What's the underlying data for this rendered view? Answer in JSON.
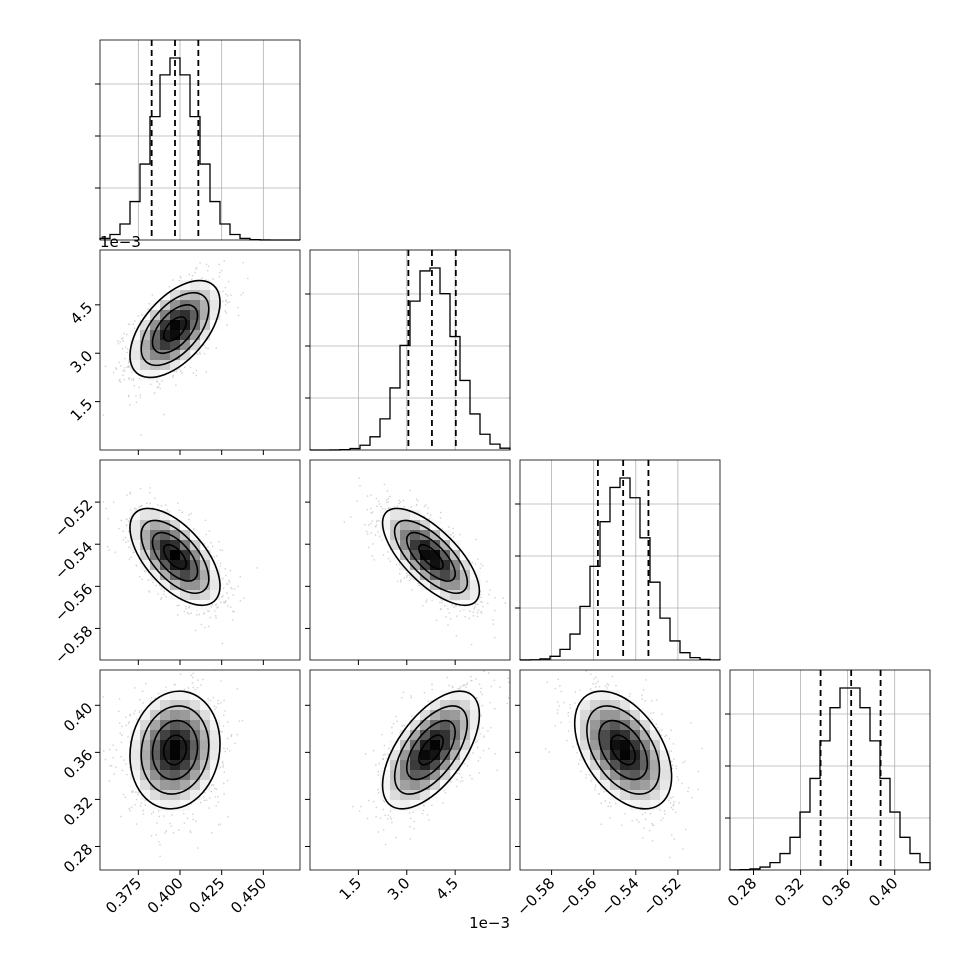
{
  "chart_data": {
    "type": "corner",
    "offset_text": "1e−3",
    "parameters": [
      {
        "range": [
          0.352,
          0.472
        ],
        "ticks": [
          0.375,
          0.4,
          0.425,
          0.45
        ],
        "tick_labels": [
          "0.375",
          "0.400",
          "0.425",
          "0.450"
        ],
        "mean": 0.397,
        "sd": 0.0135,
        "quantiles": [
          0.383,
          0.397,
          0.411
        ]
      },
      {
        "range": [
          0.0,
          0.0062
        ],
        "ticks": [
          0.0015,
          0.003,
          0.0045
        ],
        "tick_labels": [
          "1.5",
          "3.0",
          "4.5"
        ],
        "mean": 0.00375,
        "sd": 0.00075,
        "quantiles": [
          0.00305,
          0.00378,
          0.00452
        ],
        "scale_offset": "1e−3"
      },
      {
        "range": [
          -0.595,
          -0.5
        ],
        "ticks": [
          -0.58,
          -0.56,
          -0.54,
          -0.52
        ],
        "tick_labels": [
          "−0.58",
          "−0.56",
          "−0.54",
          "−0.52"
        ],
        "mean": -0.546,
        "sd": 0.0115,
        "quantiles": [
          -0.558,
          -0.546,
          -0.534
        ]
      },
      {
        "range": [
          0.26,
          0.43
        ],
        "ticks": [
          0.28,
          0.32,
          0.36,
          0.4
        ],
        "tick_labels": [
          "0.28",
          "0.32",
          "0.36",
          "0.40"
        ],
        "mean": 0.362,
        "sd": 0.025,
        "quantiles": [
          0.337,
          0.363,
          0.388
        ]
      }
    ],
    "correlations": [
      {
        "i": 1,
        "j": 0,
        "r": 0.55
      },
      {
        "i": 2,
        "j": 0,
        "r": -0.6
      },
      {
        "i": 2,
        "j": 1,
        "r": -0.7
      },
      {
        "i": 3,
        "j": 0,
        "r": 0.1
      },
      {
        "i": 3,
        "j": 1,
        "r": 0.6
      },
      {
        "i": 3,
        "j": 2,
        "r": -0.45
      }
    ],
    "histogram_bins": 20,
    "grid": true,
    "colors": {
      "line": "#000000",
      "points": "#9a9a9a",
      "grid": "#b0b0b0"
    }
  }
}
